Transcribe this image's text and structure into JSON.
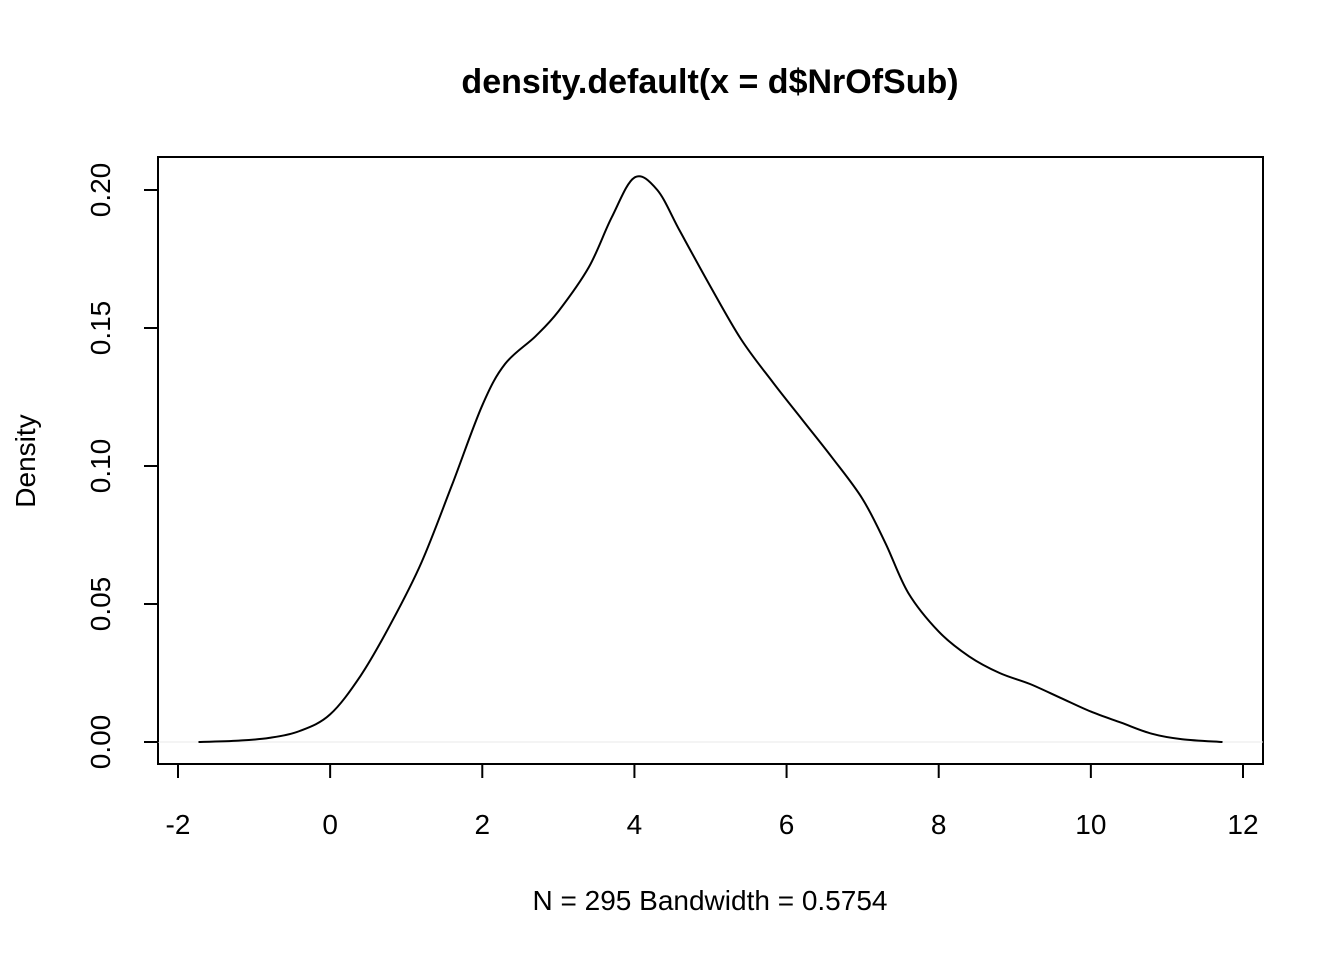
{
  "chart_data": {
    "type": "line",
    "title": "density.default(x = d$NrOfSub)",
    "xlabel": "N = 295   Bandwidth = 0.5754",
    "ylabel": "Density",
    "xlim": [
      -2,
      12
    ],
    "ylim": [
      0,
      0.2
    ],
    "x_ticks": [
      -2,
      0,
      2,
      4,
      6,
      8,
      10,
      12
    ],
    "x_tick_labels": [
      "-2",
      "0",
      "2",
      "4",
      "6",
      "8",
      "10",
      "12"
    ],
    "y_ticks": [
      0.0,
      0.05,
      0.1,
      0.15,
      0.2
    ],
    "y_tick_labels": [
      "0.00",
      "0.05",
      "0.10",
      "0.15",
      "0.20"
    ],
    "grid": false,
    "legend": "none",
    "series": [
      {
        "color": "#000000",
        "x": [
          -1.73,
          -1.2,
          -0.8,
          -0.4,
          0.0,
          0.4,
          0.8,
          1.2,
          1.6,
          2.0,
          2.3,
          2.7,
          3.0,
          3.4,
          3.7,
          4.0,
          4.3,
          4.6,
          5.0,
          5.4,
          5.8,
          6.2,
          6.6,
          7.0,
          7.3,
          7.6,
          8.0,
          8.4,
          8.8,
          9.2,
          9.6,
          10.0,
          10.4,
          10.8,
          11.2,
          11.73
        ],
        "y": [
          0.0,
          0.0005,
          0.0015,
          0.004,
          0.01,
          0.024,
          0.043,
          0.065,
          0.093,
          0.122,
          0.137,
          0.147,
          0.156,
          0.172,
          0.19,
          0.2045,
          0.2,
          0.185,
          0.165,
          0.146,
          0.131,
          0.117,
          0.103,
          0.088,
          0.072,
          0.054,
          0.04,
          0.031,
          0.025,
          0.021,
          0.016,
          0.011,
          0.007,
          0.003,
          0.001,
          0.0
        ]
      }
    ]
  }
}
